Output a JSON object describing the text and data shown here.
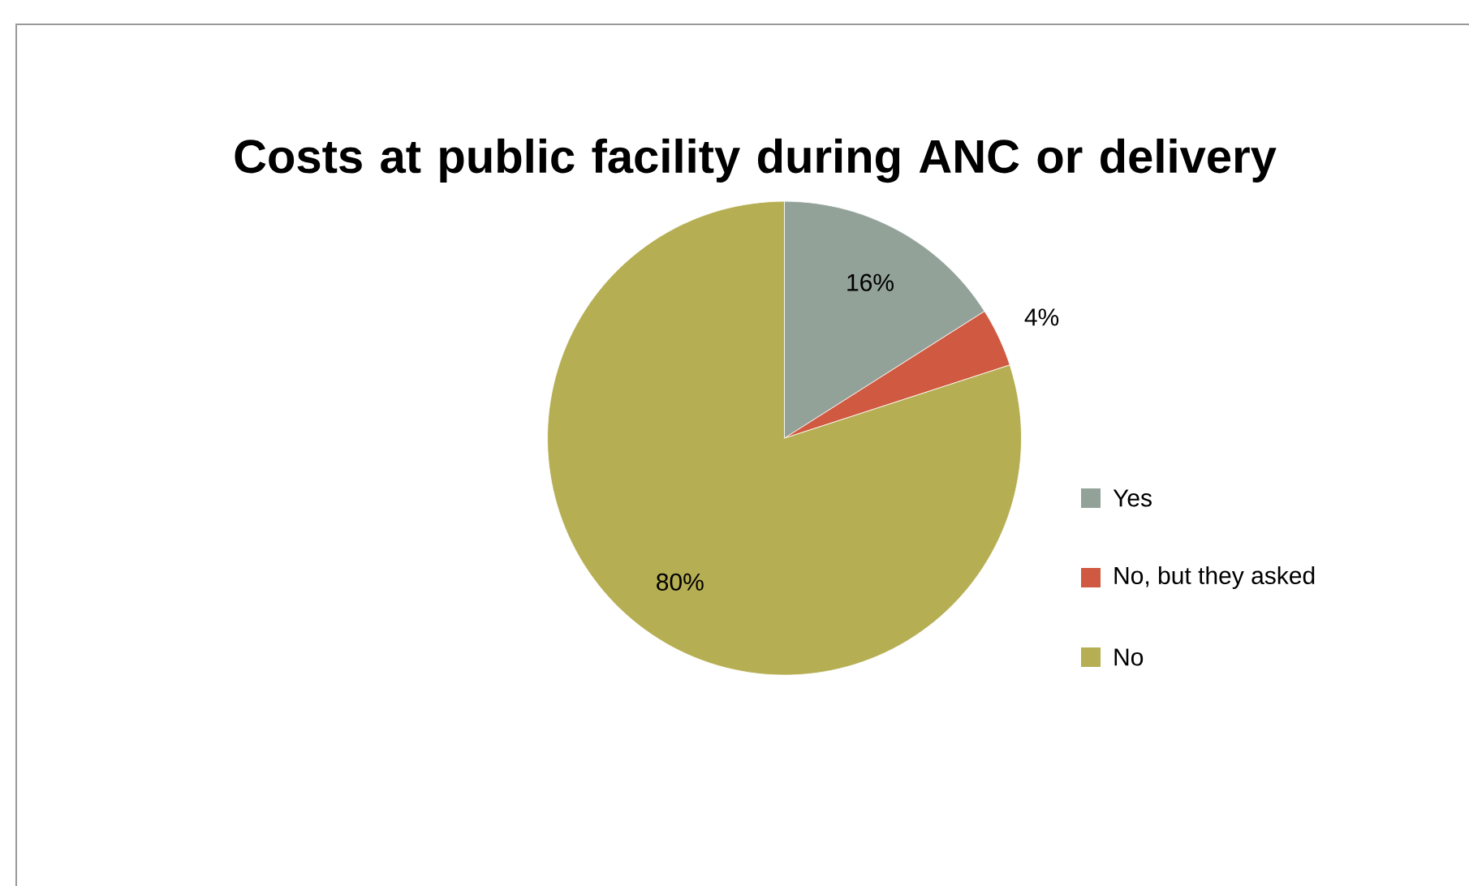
{
  "chart_data": {
    "type": "pie",
    "title": "Costs at public facility during ANC or delivery",
    "categories": [
      "Yes",
      "No, but they asked",
      "No"
    ],
    "values": [
      16,
      4,
      80
    ],
    "colors": [
      "#93a299",
      "#d05a41",
      "#b6ae53"
    ],
    "value_labels": [
      "16%",
      "4%",
      "80%"
    ],
    "legend": "right"
  }
}
